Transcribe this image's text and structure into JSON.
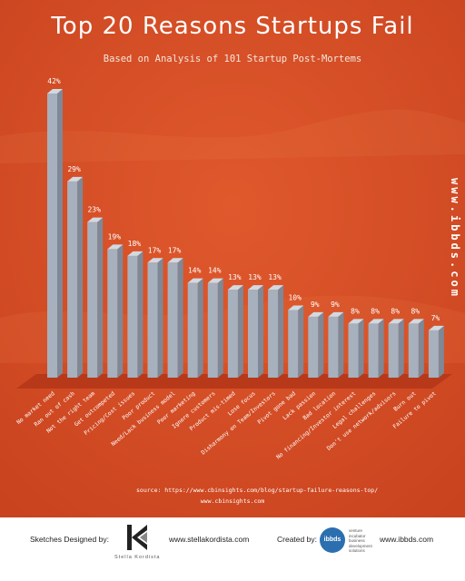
{
  "header": {
    "title": "Top 20 Reasons Startups Fail",
    "subtitle": "Based on Analysis of 101 Startup Post-Mortems"
  },
  "side_url": "www.ibbds.com",
  "source": {
    "line1": "source:  https://www.cbinsights.com/blog/startup-failure-reasons-top/",
    "line2": "www.cbinsights.com"
  },
  "footer": {
    "sketches_label": "Sketches Designed by:",
    "sketches_caption": "Stella Kordista",
    "sketches_url": "www.stellakordista.com",
    "created_label": "Created by:",
    "ibbds_logo": "ibbds",
    "ibbds_tagline": [
      "venture",
      "incubator",
      "business",
      "development",
      "solutions"
    ],
    "created_url": "www.ibbds.com"
  },
  "colors": {
    "background": "#d94f26",
    "bar_front": "#a7b0bd",
    "bar_side": "#7f8896",
    "floor": "#b7391a",
    "text": "#ffffff"
  },
  "chart_data": {
    "type": "bar",
    "title": "Top 20 Reasons Startups Fail",
    "subtitle": "Based on Analysis of 101 Startup Post-Mortems",
    "categories": [
      "No market need",
      "Ran out of cash",
      "Not the right team",
      "Get outcompeted",
      "Pricing/Cost issues",
      "Poor product",
      "Need/Lack business model",
      "Poor marketing",
      "Ignore customers",
      "Product mis-timed",
      "Lose focus",
      "Disharmony on Team/Investors",
      "Pivot gone bad",
      "Lack passion",
      "Bad location",
      "No financing/Investor interest",
      "Legal challenges",
      "Don't use network/advisors",
      "Burn out",
      "Failure to pivot"
    ],
    "values": [
      42,
      29,
      23,
      19,
      18,
      17,
      17,
      14,
      14,
      13,
      13,
      13,
      10,
      9,
      9,
      8,
      8,
      8,
      8,
      7
    ],
    "value_labels": [
      "42%",
      "29%",
      "23%",
      "19%",
      "18%",
      "17%",
      "17%",
      "14%",
      "14%",
      "13%",
      "13%",
      "13%",
      "10%",
      "9%",
      "9%",
      "8%",
      "8%",
      "8%",
      "8%",
      "7%"
    ],
    "ylim": [
      0,
      42
    ],
    "grid": false,
    "legend": "none",
    "style": "3d-cylinder"
  }
}
